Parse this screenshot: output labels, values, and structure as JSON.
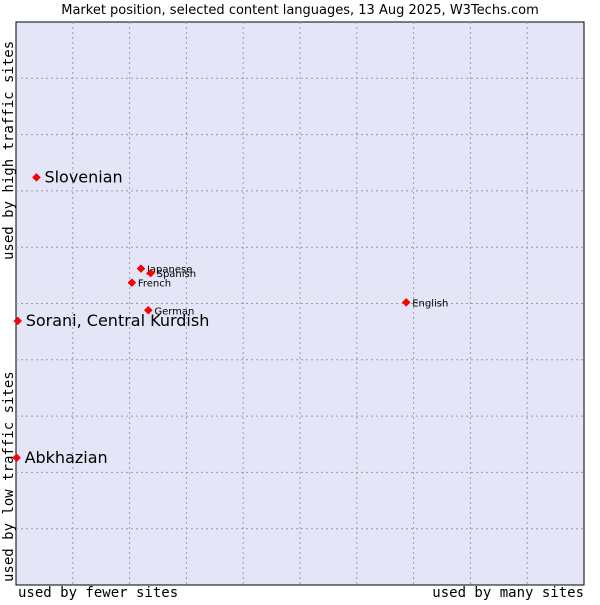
{
  "chart_data": {
    "type": "scatter",
    "title": "Market position, selected content languages, 13 Aug 2025, W3Techs.com",
    "xlabel_left": "used by fewer sites",
    "xlabel_right": "used by many sites",
    "ylabel_top": "used by high traffic sites",
    "ylabel_bottom": "used by low traffic sites",
    "xlim": [
      0,
      100
    ],
    "ylim": [
      0,
      100
    ],
    "grid": true,
    "colors": {
      "plot_bg": "#e5e5f8",
      "grid": "#9999aa",
      "marker": "#ff0000",
      "axis": "#000000"
    },
    "points": [
      {
        "label": "Slovenian",
        "x": 3.6,
        "y": 72.4,
        "size": "large"
      },
      {
        "label": "Japanese",
        "x": 22.0,
        "y": 56.2,
        "size": "small"
      },
      {
        "label": "Spanish",
        "x": 23.7,
        "y": 55.4,
        "size": "small"
      },
      {
        "label": "French",
        "x": 20.4,
        "y": 53.7,
        "size": "small"
      },
      {
        "label": "German",
        "x": 23.3,
        "y": 48.8,
        "size": "small"
      },
      {
        "label": "English",
        "x": 68.7,
        "y": 50.2,
        "size": "small"
      },
      {
        "label": "Sorani, Central Kurdish",
        "x": 0.3,
        "y": 46.9,
        "size": "large"
      },
      {
        "label": "Abkhazian",
        "x": 0.1,
        "y": 22.6,
        "size": "large"
      }
    ]
  }
}
